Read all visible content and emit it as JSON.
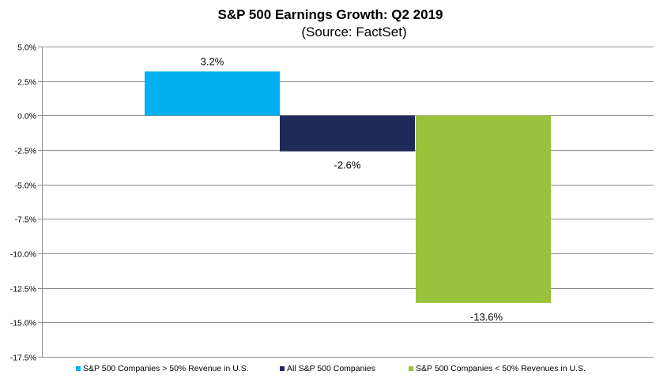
{
  "chart_data": {
    "type": "bar",
    "title": "S&P 500 Earnings Growth: Q2 2019",
    "subtitle": "(Source: FactSet)",
    "xlabel": "",
    "ylabel": "",
    "ylim": [
      -17.5,
      5.0
    ],
    "yticks": [
      "5.0%",
      "2.5%",
      "0.0%",
      "-2.5%",
      "-5.0%",
      "-7.5%",
      "-10.0%",
      "-12.5%",
      "-15.0%",
      "-17.5%"
    ],
    "ytick_values": [
      5.0,
      2.5,
      0.0,
      -2.5,
      -5.0,
      -7.5,
      -10.0,
      -12.5,
      -15.0,
      -17.5
    ],
    "grid": true,
    "legend_position": "bottom",
    "series": [
      {
        "name": "S&P 500 Companies > 50% Revenue in U.S.",
        "value": 3.2,
        "label": "3.2%",
        "color": "#00b0f0"
      },
      {
        "name": "All S&P 500 Companies",
        "value": -2.6,
        "label": "-2.6%",
        "color": "#1f2a56"
      },
      {
        "name": "S&P 500 Companies < 50% Revenues in U.S.",
        "value": -13.6,
        "label": "-13.6%",
        "color": "#99c33c"
      }
    ]
  }
}
